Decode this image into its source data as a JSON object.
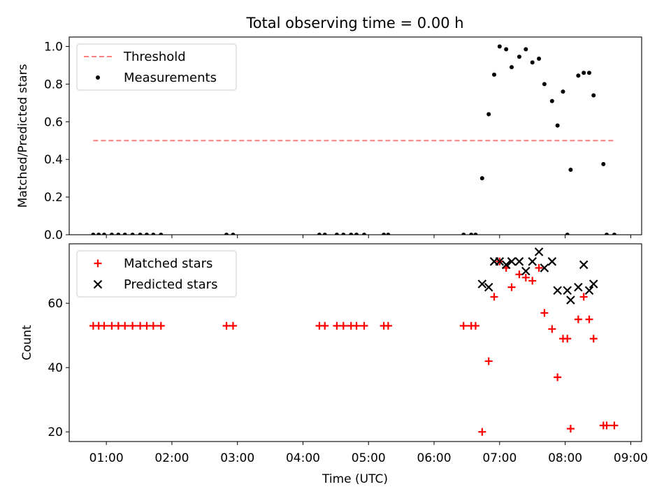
{
  "chart_data": [
    {
      "type": "scatter",
      "title": "Total observing time = 0.00 h",
      "ylabel": "Matched/Predicted stars",
      "xlabel": "",
      "x_axis": "time_utc",
      "xlim": [
        "00:26",
        "09:10"
      ],
      "ylim": [
        0,
        1.05
      ],
      "yticks": [
        0.0,
        0.2,
        0.4,
        0.6,
        0.8,
        1.0
      ],
      "ytick_labels": [
        "0.0",
        "0.2",
        "0.4",
        "0.6",
        "0.8",
        "1.0"
      ],
      "legend_position": "upper-left",
      "series": [
        {
          "name": "Threshold",
          "kind": "dashed-line",
          "color": "#ff7f7f",
          "x": [
            "00:48",
            "08:44"
          ],
          "y": [
            0.5,
            0.5
          ]
        },
        {
          "name": "Measurements",
          "kind": "dot",
          "color": "#000000",
          "x": [
            "00:48",
            "00:53",
            "00:58",
            "01:05",
            "01:11",
            "01:17",
            "01:24",
            "01:31",
            "01:37",
            "01:43",
            "01:50",
            "02:50",
            "02:56",
            "04:15",
            "04:20",
            "04:31",
            "04:37",
            "04:44",
            "04:49",
            "04:56",
            "05:14",
            "05:18",
            "06:27",
            "06:34",
            "06:38",
            "06:44",
            "06:50",
            "06:55",
            "07:00",
            "07:06",
            "07:11",
            "07:18",
            "07:24",
            "07:30",
            "07:36",
            "07:41",
            "07:48",
            "07:53",
            "07:58",
            "08:02",
            "08:05",
            "08:12",
            "08:17",
            "08:22",
            "08:26",
            "08:35",
            "08:38",
            "08:45"
          ],
          "y": [
            0,
            0,
            0,
            0,
            0,
            0,
            0,
            0,
            0,
            0,
            0,
            0,
            0,
            0,
            0,
            0,
            0,
            0,
            0,
            0,
            0,
            0,
            0,
            0,
            0,
            0.3,
            0.64,
            0.85,
            1.0,
            0.985,
            0.89,
            0.945,
            0.985,
            0.915,
            0.935,
            0.8,
            0.71,
            0.58,
            0.76,
            0,
            0.345,
            0.845,
            0.86,
            0.86,
            0.74,
            0.375,
            0,
            0
          ]
        }
      ]
    },
    {
      "type": "scatter",
      "title": "",
      "ylabel": "Count",
      "xlabel": "Time (UTC)",
      "x_axis": "time_utc",
      "xlim": [
        "00:26",
        "09:10"
      ],
      "ylim": [
        17,
        78.5
      ],
      "yticks": [
        20,
        40,
        60
      ],
      "ytick_labels": [
        "20",
        "40",
        "60"
      ],
      "xticks": [
        "01:00",
        "02:00",
        "03:00",
        "04:00",
        "05:00",
        "06:00",
        "07:00",
        "08:00",
        "09:00"
      ],
      "xtick_labels": [
        "01:00",
        "02:00",
        "03:00",
        "04:00",
        "05:00",
        "06:00",
        "07:00",
        "08:00",
        "09:00"
      ],
      "legend_position": "upper-left",
      "series": [
        {
          "name": "Matched stars",
          "kind": "plus",
          "color": "#ff0000",
          "x": [
            "00:48",
            "00:53",
            "00:58",
            "01:05",
            "01:11",
            "01:17",
            "01:24",
            "01:31",
            "01:37",
            "01:43",
            "01:50",
            "02:50",
            "02:56",
            "04:15",
            "04:20",
            "04:31",
            "04:37",
            "04:44",
            "04:49",
            "04:56",
            "05:14",
            "05:18",
            "06:27",
            "06:34",
            "06:38",
            "06:44",
            "06:50",
            "06:55",
            "07:00",
            "07:06",
            "07:11",
            "07:18",
            "07:24",
            "07:30",
            "07:36",
            "07:41",
            "07:48",
            "07:53",
            "07:58",
            "08:02",
            "08:05",
            "08:12",
            "08:17",
            "08:22",
            "08:26",
            "08:35",
            "08:38",
            "08:45"
          ],
          "y": [
            53,
            53,
            53,
            53,
            53,
            53,
            53,
            53,
            53,
            53,
            53,
            53,
            53,
            53,
            53,
            53,
            53,
            53,
            53,
            53,
            53,
            53,
            53,
            53,
            53,
            20,
            42,
            62,
            73,
            71,
            65,
            69,
            68,
            67,
            71,
            57,
            52,
            37,
            49,
            49,
            21,
            55,
            62,
            55,
            49,
            22,
            22,
            22
          ]
        },
        {
          "name": "Predicted stars",
          "kind": "x",
          "color": "#000000",
          "x": [
            "06:44",
            "06:50",
            "06:55",
            "07:00",
            "07:06",
            "07:11",
            "07:18",
            "07:24",
            "07:30",
            "07:36",
            "07:41",
            "07:48",
            "07:53",
            "08:02",
            "08:05",
            "08:12",
            "08:17",
            "08:22",
            "08:26"
          ],
          "y": [
            66,
            65,
            73,
            73,
            72,
            73,
            73,
            70,
            73,
            76,
            71,
            73,
            64,
            64,
            61,
            65,
            72,
            64,
            66
          ]
        }
      ]
    }
  ]
}
